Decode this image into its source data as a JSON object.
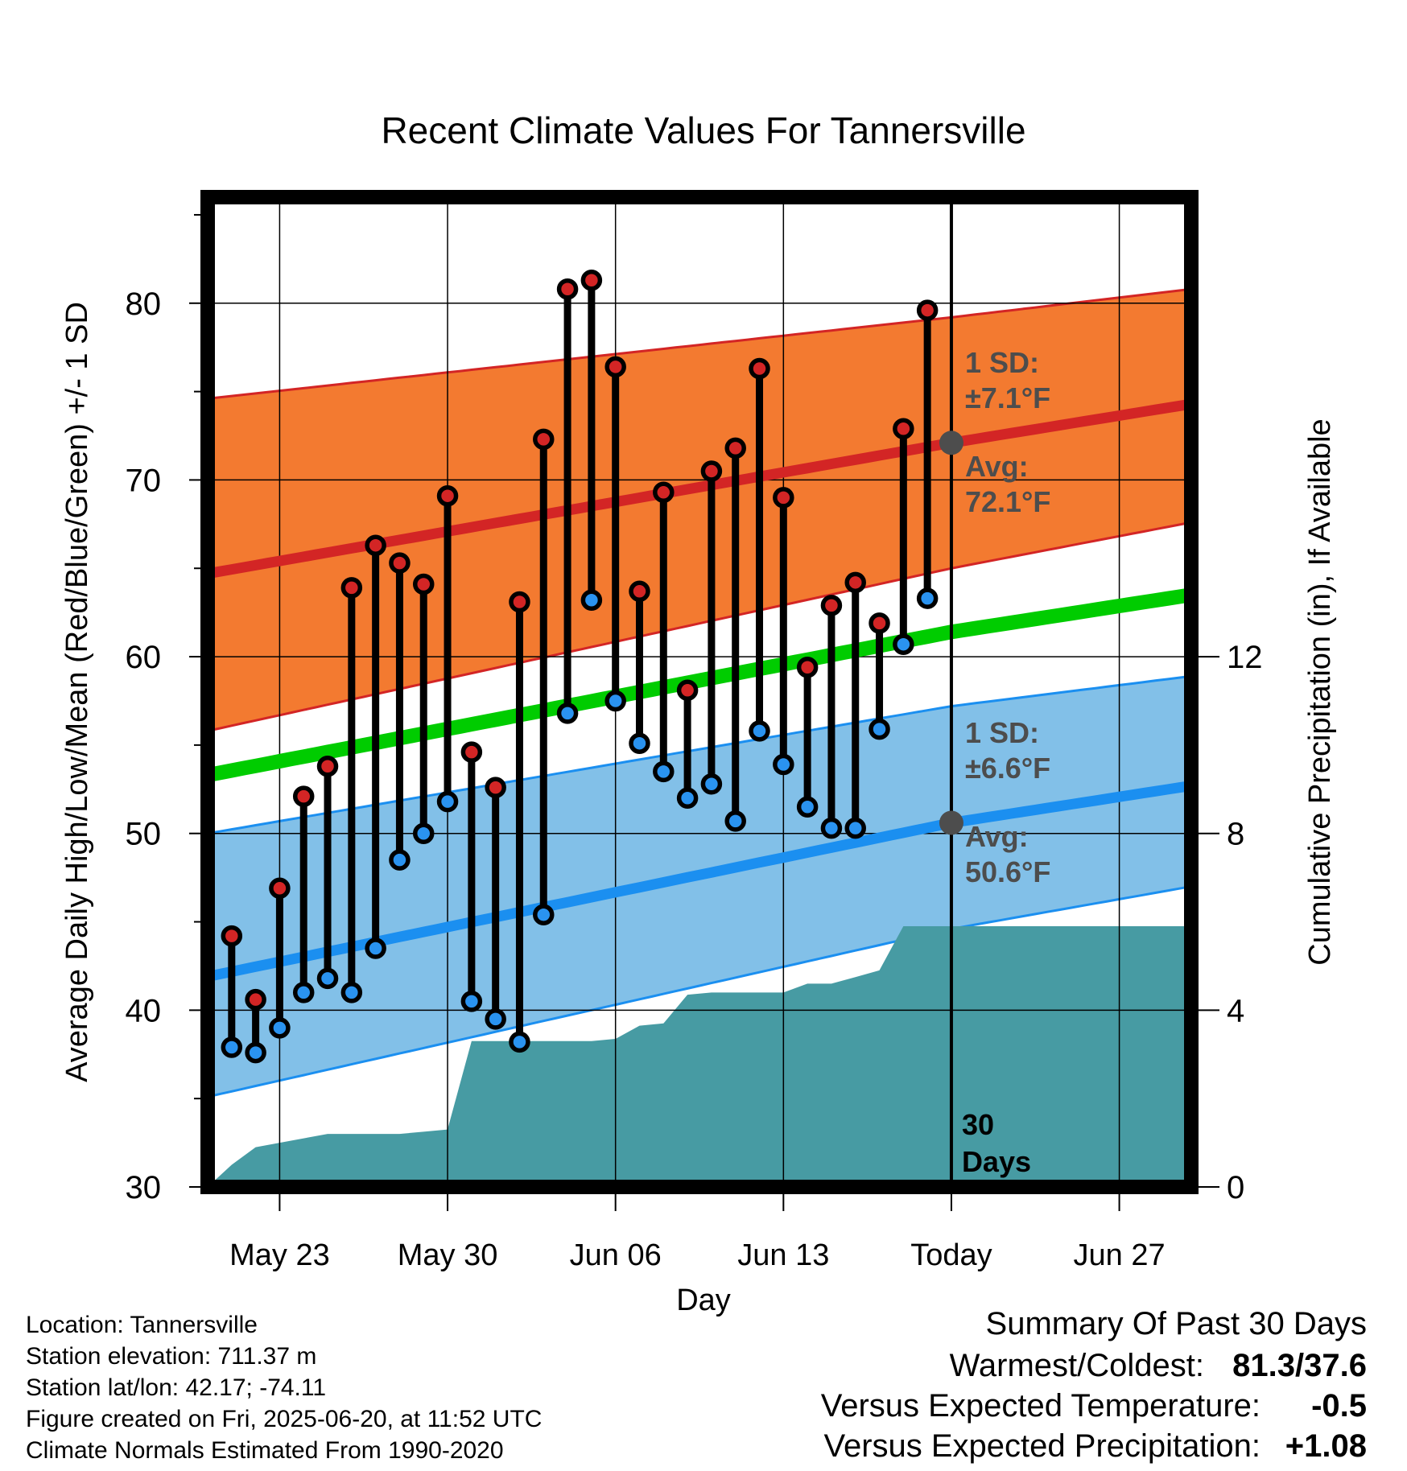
{
  "title": "Recent Climate Values For Tannersville",
  "colors": {
    "high_band": "#f37a30",
    "high_line": "#d32525",
    "low_band": "#82c0e8",
    "low_line": "#1b8ff0",
    "mean_line": "#00cc00",
    "precip": "#479ba3",
    "high_dot": "#d32525",
    "low_dot": "#2a93f0",
    "frame": "#000000",
    "label_gray": "#4d4d4d",
    "cold_anomaly": "#2a93f0",
    "wet_anomaly": "#22bb22"
  },
  "chart_data": {
    "type": "line",
    "title": "Recent Climate Values For Tannersville",
    "xlabel": "Day",
    "ylabel": "Average Daily High/Low/Mean (Red/Blue/Green) +/- 1 SD",
    "y2label": "Cumulative Precipitation (in), If Available",
    "x_dates": [
      "2025-05-20",
      "2025-06-30"
    ],
    "ylim": [
      30,
      86
    ],
    "y2lim": [
      0,
      22.4
    ],
    "yticks": [
      30,
      40,
      50,
      60,
      70,
      80
    ],
    "y2ticks": [
      0,
      4,
      8,
      12
    ],
    "xtick_labels": [
      {
        "date": "2025-05-23",
        "label": "May 23"
      },
      {
        "date": "2025-05-30",
        "label": "May 30"
      },
      {
        "date": "2025-06-06",
        "label": "Jun 06"
      },
      {
        "date": "2025-06-13",
        "label": "Jun 13"
      },
      {
        "date": "2025-06-20",
        "label": "Today"
      },
      {
        "date": "2025-06-27",
        "label": "Jun 27"
      }
    ],
    "grid": true,
    "today": "2025-06-20",
    "today_label": [
      "30",
      "Days"
    ],
    "normals": {
      "dates": [
        "2025-05-20",
        "2025-06-20",
        "2025-06-30"
      ],
      "high_mean": [
        64.7,
        72.1,
        74.3
      ],
      "high_sd_upper": [
        74.6,
        79.2,
        80.8
      ],
      "high_sd_lower": [
        55.8,
        65.0,
        67.6
      ],
      "avg_mean": [
        53.3,
        61.4,
        63.5
      ],
      "low_mean": [
        41.9,
        50.6,
        52.7
      ],
      "low_sd_upper": [
        50.0,
        57.2,
        58.9
      ],
      "low_sd_lower": [
        35.1,
        44.6,
        47.0
      ]
    },
    "annotations": {
      "high_sd": [
        "1 SD:",
        "±7.1°F"
      ],
      "high_avg": [
        "Avg:",
        "72.1°F"
      ],
      "low_sd": [
        "1 SD:",
        "±6.6°F"
      ],
      "low_avg": [
        "Avg:",
        "50.6°F"
      ]
    },
    "observed": {
      "dates": [
        "2025-05-21",
        "2025-05-22",
        "2025-05-23",
        "2025-05-24",
        "2025-05-25",
        "2025-05-26",
        "2025-05-27",
        "2025-05-28",
        "2025-05-29",
        "2025-05-30",
        "2025-05-31",
        "2025-06-01",
        "2025-06-02",
        "2025-06-03",
        "2025-06-04",
        "2025-06-05",
        "2025-06-06",
        "2025-06-07",
        "2025-06-08",
        "2025-06-09",
        "2025-06-10",
        "2025-06-11",
        "2025-06-12",
        "2025-06-13",
        "2025-06-14",
        "2025-06-15",
        "2025-06-16",
        "2025-06-17",
        "2025-06-18",
        "2025-06-19"
      ],
      "high": [
        44.2,
        40.6,
        46.9,
        52.1,
        53.8,
        63.9,
        66.3,
        65.3,
        64.1,
        69.1,
        54.6,
        52.6,
        63.1,
        72.3,
        80.8,
        81.3,
        76.4,
        63.7,
        69.3,
        58.1,
        70.5,
        71.8,
        76.3,
        69.0,
        59.4,
        62.9,
        64.2,
        61.9,
        72.9,
        79.6
      ],
      "low": [
        37.9,
        37.6,
        39.0,
        41.0,
        41.8,
        41.0,
        43.5,
        48.5,
        50.0,
        51.8,
        40.5,
        39.5,
        38.2,
        45.4,
        56.8,
        63.2,
        57.5,
        55.1,
        53.5,
        52.0,
        52.8,
        50.7,
        55.8,
        53.9,
        51.5,
        50.3,
        50.3,
        55.9,
        60.7,
        63.3
      ]
    },
    "precip": {
      "dates": [
        "2025-05-20",
        "2025-05-21",
        "2025-05-22",
        "2025-05-23",
        "2025-05-24",
        "2025-05-25",
        "2025-05-26",
        "2025-05-27",
        "2025-05-28",
        "2025-05-29",
        "2025-05-30",
        "2025-05-31",
        "2025-06-01",
        "2025-06-02",
        "2025-06-03",
        "2025-06-04",
        "2025-06-05",
        "2025-06-06",
        "2025-06-07",
        "2025-06-08",
        "2025-06-09",
        "2025-06-10",
        "2025-06-11",
        "2025-06-12",
        "2025-06-13",
        "2025-06-14",
        "2025-06-15",
        "2025-06-16",
        "2025-06-17",
        "2025-06-18",
        "2025-06-19",
        "2025-06-30"
      ],
      "values": [
        0,
        0.5,
        0.9,
        1.0,
        1.1,
        1.2,
        1.2,
        1.2,
        1.2,
        1.25,
        1.3,
        3.3,
        3.3,
        3.3,
        3.3,
        3.3,
        3.3,
        3.35,
        3.65,
        3.7,
        4.35,
        4.4,
        4.4,
        4.4,
        4.4,
        4.6,
        4.6,
        4.75,
        4.9,
        5.9,
        5.9,
        5.9
      ]
    }
  },
  "footer": {
    "location": "Location: Tannersville",
    "elevation": "Station elevation: 711.37 m",
    "latlon": "Station lat/lon: 42.17; -74.11",
    "created": "Figure created on Fri, 2025-06-20, at 11:52 UTC",
    "normals": "Climate Normals Estimated From 1990-2020"
  },
  "summary": {
    "heading": "Summary Of Past 30 Days",
    "warm_cold_label": "Warmest/Coldest:",
    "warm_cold_value": "81.3/37.6",
    "temp_label": "Versus Expected Temperature:",
    "temp_value": "-0.5",
    "precip_label": "Versus Expected Precipitation:",
    "precip_value": "+1.08"
  }
}
